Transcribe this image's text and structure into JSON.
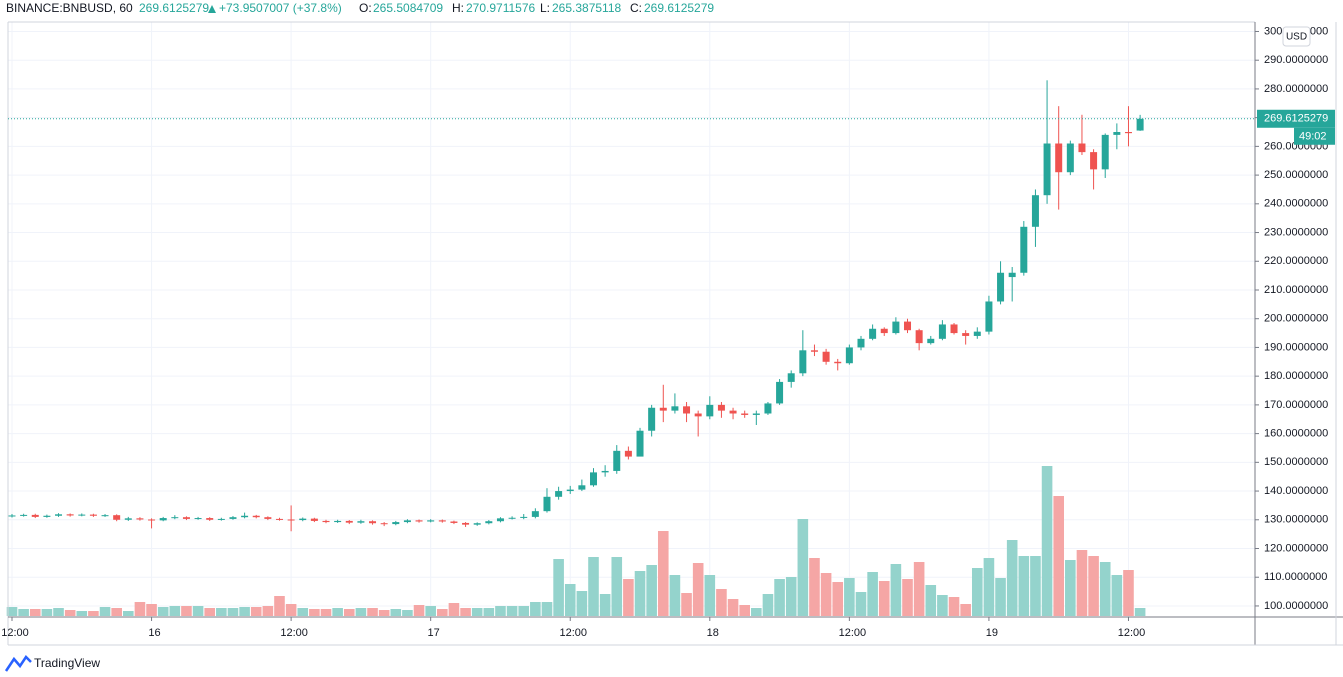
{
  "header": {
    "symbol": "BINANCE:BNBUSD, 60",
    "change": "+73.9507007 (+37.8%)",
    "ohlc_labels": [
      "O:",
      "H:",
      "L:",
      "C:"
    ]
  },
  "chart_data": {
    "type": "candlestick",
    "open": [
      131.2,
      131.5,
      131.7,
      131.0,
      131.4,
      131.9,
      131.5,
      131.8,
      131.4,
      131.6,
      130.0,
      130.5,
      130.1,
      129.8,
      130.6,
      130.9,
      130.3,
      130.6,
      130.0,
      130.3,
      130.9,
      131.4,
      130.9,
      130.3,
      130.1,
      129.9,
      130.4,
      129.6,
      129.2,
      129.6,
      129.0,
      129.5,
      128.8,
      128.5,
      129.2,
      129.8,
      129.4,
      129.8,
      129.4,
      128.9,
      128.3,
      128.8,
      129.5,
      130.5,
      130.7,
      131.0,
      133.0,
      138.0,
      140.0,
      140.5,
      142.0,
      146.5,
      147.0,
      154.0,
      152.0,
      161.0,
      169.0,
      168.0,
      169.5,
      167.0,
      166.0,
      170.0,
      168.0,
      167.0,
      166.5,
      167.0,
      170.5,
      178.0,
      181,
      189,
      188.5,
      185,
      184.5,
      190,
      193,
      196.5,
      195,
      199,
      196,
      191.5,
      193,
      198,
      195,
      194,
      195.5,
      206,
      214.5,
      216,
      232,
      243,
      261,
      251,
      261,
      258,
      252,
      264,
      265,
      265.5084709
    ],
    "high": [
      132.0,
      132.1,
      132.1,
      131.8,
      132.3,
      132.2,
      132.2,
      132.1,
      132.0,
      131.9,
      131.0,
      130.9,
      130.5,
      131.0,
      131.6,
      131.2,
      131.0,
      130.9,
      130.7,
      131.3,
      132.5,
      131.7,
      131.2,
      130.7,
      135.0,
      130.8,
      130.7,
      130.0,
      130.0,
      129.9,
      130.0,
      129.8,
      129.2,
      129.6,
      130.2,
      130.1,
      130.2,
      130.1,
      129.7,
      129.2,
      129.1,
      129.9,
      130.9,
      131.2,
      132.0,
      134.0,
      141.0,
      141.5,
      141.8,
      144.0,
      148.0,
      149.0,
      156.0,
      155.5,
      162.0,
      170.0,
      177.0,
      174.0,
      171.0,
      168.0,
      173.0,
      171.0,
      169.0,
      168.0,
      168.0,
      171.0,
      179.0,
      182.0,
      196,
      191,
      189.5,
      186,
      191,
      194,
      198,
      197,
      200.5,
      200,
      196.5,
      194,
      199.5,
      198.5,
      196,
      197,
      208,
      220,
      218,
      234,
      245,
      283,
      274,
      262,
      271,
      259,
      264.5,
      268,
      274,
      270.9711576
    ],
    "low": [
      130.8,
      131.1,
      130.6,
      130.7,
      131.0,
      131.1,
      131.2,
      131.0,
      131.0,
      129.5,
      129.6,
      129.7,
      127.0,
      129.5,
      130.2,
      129.9,
      130.0,
      129.6,
      129.7,
      130.0,
      130.5,
      130.5,
      129.9,
      129.7,
      126.0,
      129.5,
      129.2,
      128.8,
      128.9,
      128.5,
      128.6,
      128.3,
      127.8,
      128.1,
      128.8,
      129.0,
      129.1,
      129.0,
      128.5,
      127.5,
      127.9,
      128.4,
      129.1,
      130.1,
      130.2,
      130.5,
      132.5,
      137.0,
      139.0,
      140.0,
      141.5,
      145.0,
      146.0,
      151.0,
      153.0,
      159.0,
      164.0,
      167.0,
      164.0,
      159.0,
      165.0,
      165.5,
      165.0,
      165.5,
      163.0,
      166.5,
      170.0,
      176.0,
      180,
      187,
      184,
      182,
      184,
      189,
      192.5,
      194,
      194.5,
      195,
      189,
      191,
      192.5,
      194.5,
      191,
      193,
      194.5,
      205,
      206,
      215,
      225,
      240,
      238,
      250,
      257,
      245,
      249,
      259,
      260,
      265.3875118
    ],
    "close": [
      131.5,
      131.7,
      131.0,
      131.4,
      131.9,
      131.5,
      131.8,
      131.4,
      131.6,
      130.0,
      130.5,
      130.1,
      129.8,
      130.6,
      130.9,
      130.3,
      130.6,
      130.0,
      130.3,
      130.9,
      131.4,
      130.9,
      130.3,
      130.1,
      129.9,
      130.4,
      129.6,
      129.2,
      129.6,
      129.0,
      129.5,
      128.8,
      128.5,
      129.2,
      129.8,
      129.4,
      129.8,
      129.4,
      128.9,
      128.3,
      128.8,
      129.5,
      130.5,
      130.7,
      131.0,
      133.0,
      138.0,
      140.0,
      140.5,
      142.0,
      146.5,
      147.0,
      154.0,
      152.0,
      161.0,
      169.0,
      168.0,
      169.5,
      167.0,
      166.0,
      170.0,
      168.0,
      167.0,
      166.5,
      167.0,
      170.5,
      178.0,
      181.0,
      189,
      188.5,
      185,
      184.5,
      190,
      193,
      196.5,
      195,
      199,
      196,
      191.5,
      193,
      198,
      195,
      194,
      195.5,
      206,
      216,
      216,
      232,
      243,
      261,
      251,
      261,
      258,
      252,
      264,
      265,
      264.6,
      269.6125279
    ],
    "volume": [
      9,
      7,
      7,
      7,
      8,
      6,
      5,
      5,
      9,
      8,
      5,
      14,
      12,
      9,
      10,
      10,
      10,
      8,
      8,
      8,
      9,
      9,
      10,
      20,
      12,
      8,
      7,
      7,
      8,
      7,
      8,
      8,
      6,
      7,
      6,
      11,
      10,
      7,
      13,
      8,
      8,
      8,
      10,
      10,
      10,
      14,
      14,
      57,
      32,
      25,
      59,
      22,
      59,
      37,
      45,
      51,
      85,
      41,
      23,
      53,
      41,
      27,
      17,
      11,
      8,
      22,
      37,
      39,
      97,
      58,
      43,
      34,
      38,
      24,
      44,
      35,
      52,
      37,
      54,
      31,
      21,
      19,
      12,
      48,
      58,
      38,
      76,
      60,
      60,
      150,
      120,
      56,
      66,
      60,
      54,
      41,
      46,
      8
    ],
    "up_color": "#26a69a",
    "down_color": "#ef5350",
    "volume_up_color": "#94d3cc",
    "volume_down_color": "#f5a6a5",
    "ylim": [
      96.5,
      303.3
    ],
    "yticks": [
      {
        "value": 100,
        "label": "100.0000000"
      },
      {
        "value": 110,
        "label": "110.0000000"
      },
      {
        "value": 120,
        "label": "120.0000000"
      },
      {
        "value": 130,
        "label": "130.0000000"
      },
      {
        "value": 140,
        "label": "140.0000000"
      },
      {
        "value": 150,
        "label": "150.0000000"
      },
      {
        "value": 160,
        "label": "160.0000000"
      },
      {
        "value": 170,
        "label": "170.0000000"
      },
      {
        "value": 180,
        "label": "180.0000000"
      },
      {
        "value": 190,
        "label": "190.0000000"
      },
      {
        "value": 200,
        "label": "200.0000000"
      },
      {
        "value": 210,
        "label": "210.0000000"
      },
      {
        "value": 220,
        "label": "220.0000000"
      },
      {
        "value": 230,
        "label": "230.0000000"
      },
      {
        "value": 240,
        "label": "240.0000000"
      },
      {
        "value": 250,
        "label": "250.0000000"
      },
      {
        "value": 260,
        "label": "260.0000000"
      },
      {
        "value": 270,
        "label": "270.0000000"
      },
      {
        "value": 280,
        "label": "280.0000000"
      },
      {
        "value": 290,
        "label": "290.0000000"
      },
      {
        "value": 300,
        "label": "300.0000000"
      }
    ],
    "xticks": [
      {
        "value": 0,
        "label": "12:00"
      },
      {
        "value": 12,
        "label": "16"
      },
      {
        "value": 24,
        "label": "12:00"
      },
      {
        "value": 36,
        "label": "17"
      },
      {
        "value": 48,
        "label": "12:00"
      },
      {
        "value": 60,
        "label": "18"
      },
      {
        "value": 72,
        "label": "12:00"
      },
      {
        "value": 84,
        "label": "19"
      },
      {
        "value": 96,
        "label": "12:00"
      }
    ],
    "currency": "USD",
    "countdown": "49:02",
    "grid": true
  },
  "footer": {
    "logo": "TradingView"
  }
}
